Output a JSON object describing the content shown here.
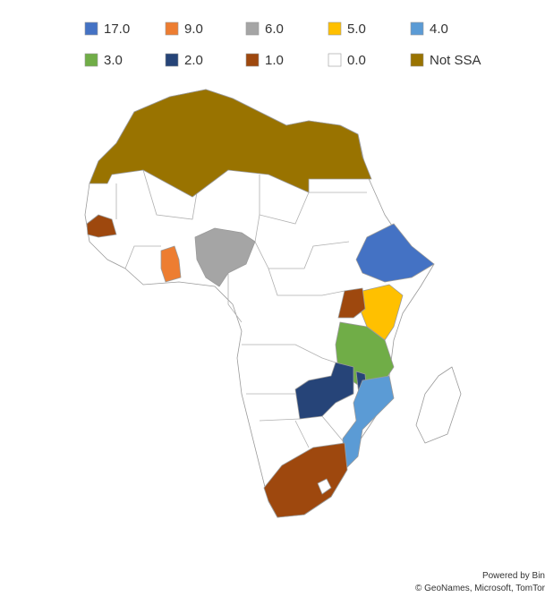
{
  "legend": [
    {
      "label": "17.0",
      "color": "#4472c4"
    },
    {
      "label": "9.0",
      "color": "#ed7d31"
    },
    {
      "label": "6.0",
      "color": "#a5a5a5"
    },
    {
      "label": "5.0",
      "color": "#ffc000"
    },
    {
      "label": "4.0",
      "color": "#5b9bd5"
    },
    {
      "label": "3.0",
      "color": "#70ad47"
    },
    {
      "label": "2.0",
      "color": "#264478"
    },
    {
      "label": "1.0",
      "color": "#9e480e"
    },
    {
      "label": "0.0",
      "color": "#ffffff"
    },
    {
      "label": "Not SSA",
      "color": "#997300"
    }
  ],
  "attribution": {
    "line1": "Powered by Bin",
    "line2": "© GeoNames, Microsoft, TomTor"
  }
}
